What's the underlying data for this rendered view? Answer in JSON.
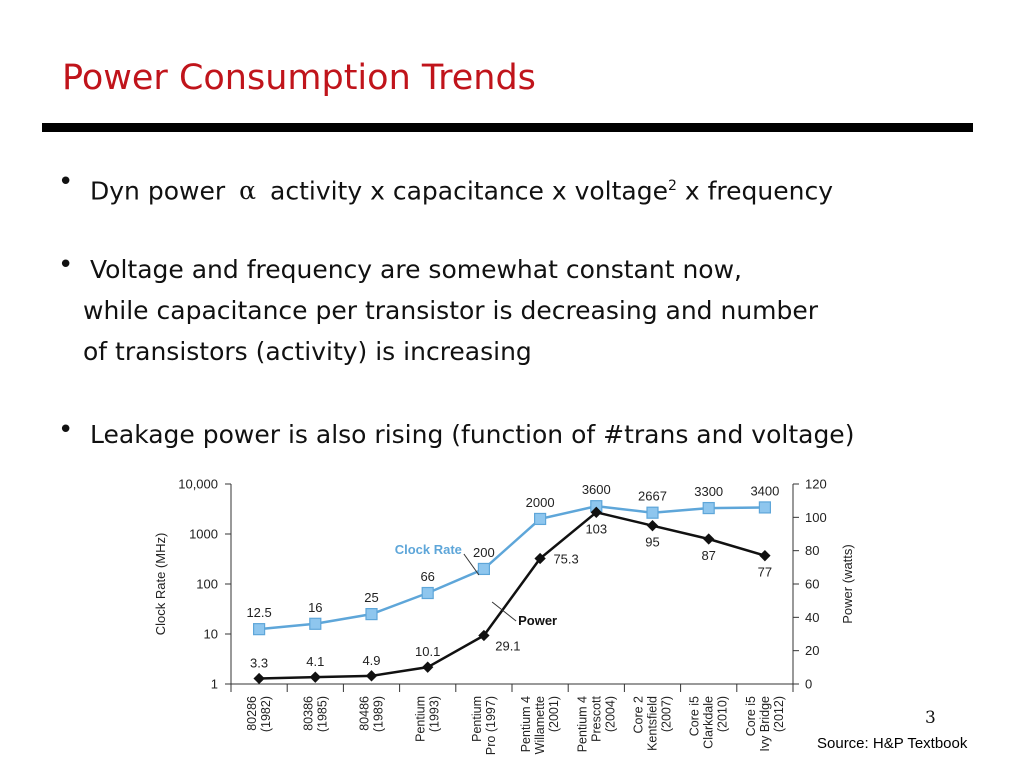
{
  "slide": {
    "title": "Power Consumption Trends",
    "bullets": [
      {
        "pre": "Dyn power",
        "symbol": "α",
        "mid": "activity x capacitance x voltage",
        "sup": "2",
        "post": "x frequency"
      },
      {
        "line1": "Voltage and frequency are somewhat constant now,",
        "line2": "while capacitance per transistor is decreasing and number",
        "line3": "of transistors (activity) is increasing"
      },
      {
        "text": "Leakage power is also rising (function of #trans and voltage)"
      }
    ],
    "page_number": "3",
    "source": "Source: H&P Textbook"
  },
  "colors": {
    "title": "#c0141b",
    "clock_rate": "#5ea6d9",
    "clock_marker": "#8ec6ee",
    "power": "#111111"
  },
  "chart_data": {
    "type": "line",
    "categories": [
      [
        "80286",
        "(1982)"
      ],
      [
        "80386",
        "(1985)"
      ],
      [
        "80486",
        "(1989)"
      ],
      [
        "Pentium",
        "(1993)"
      ],
      [
        "Pentium",
        "Pro (1997)"
      ],
      [
        "Pentium 4",
        "Willamette",
        "(2001)"
      ],
      [
        "Pentium 4",
        "Prescott",
        "(2004)"
      ],
      [
        "Core 2",
        "Kentsfield",
        "(2007)"
      ],
      [
        "Core i5",
        "Clarkdale",
        "(2010)"
      ],
      [
        "Core i5",
        "Ivy Bridge",
        "(2012)"
      ]
    ],
    "series": [
      {
        "name": "Clock Rate",
        "axis": "left",
        "values": [
          12.5,
          16,
          25,
          66,
          200,
          2000,
          3600,
          2667,
          3300,
          3400
        ],
        "labels": [
          "12.5",
          "16",
          "25",
          "66",
          "200",
          "2000",
          "3600",
          "2667",
          "3300",
          "3400"
        ]
      },
      {
        "name": "Power",
        "axis": "right",
        "values": [
          3.3,
          4.1,
          4.9,
          10.1,
          29.1,
          75.3,
          103,
          95,
          87,
          77
        ],
        "labels": [
          "3.3",
          "4.1",
          "4.9",
          "10.1",
          "29.1",
          "75.3",
          "103",
          "95",
          "87",
          "77"
        ]
      }
    ],
    "y_left": {
      "label": "Clock Rate (MHz)",
      "scale": "log",
      "ticks": [
        1,
        10,
        100,
        1000,
        10000
      ],
      "tick_labels": [
        "1",
        "10",
        "100",
        "1000",
        "10,000"
      ]
    },
    "y_right": {
      "label": "Power (watts)",
      "scale": "linear",
      "ylim": [
        0,
        120
      ],
      "ticks": [
        0,
        20,
        40,
        60,
        80,
        100,
        120
      ],
      "tick_labels": [
        "0",
        "20",
        "40",
        "60",
        "80",
        "100",
        "120"
      ]
    }
  }
}
